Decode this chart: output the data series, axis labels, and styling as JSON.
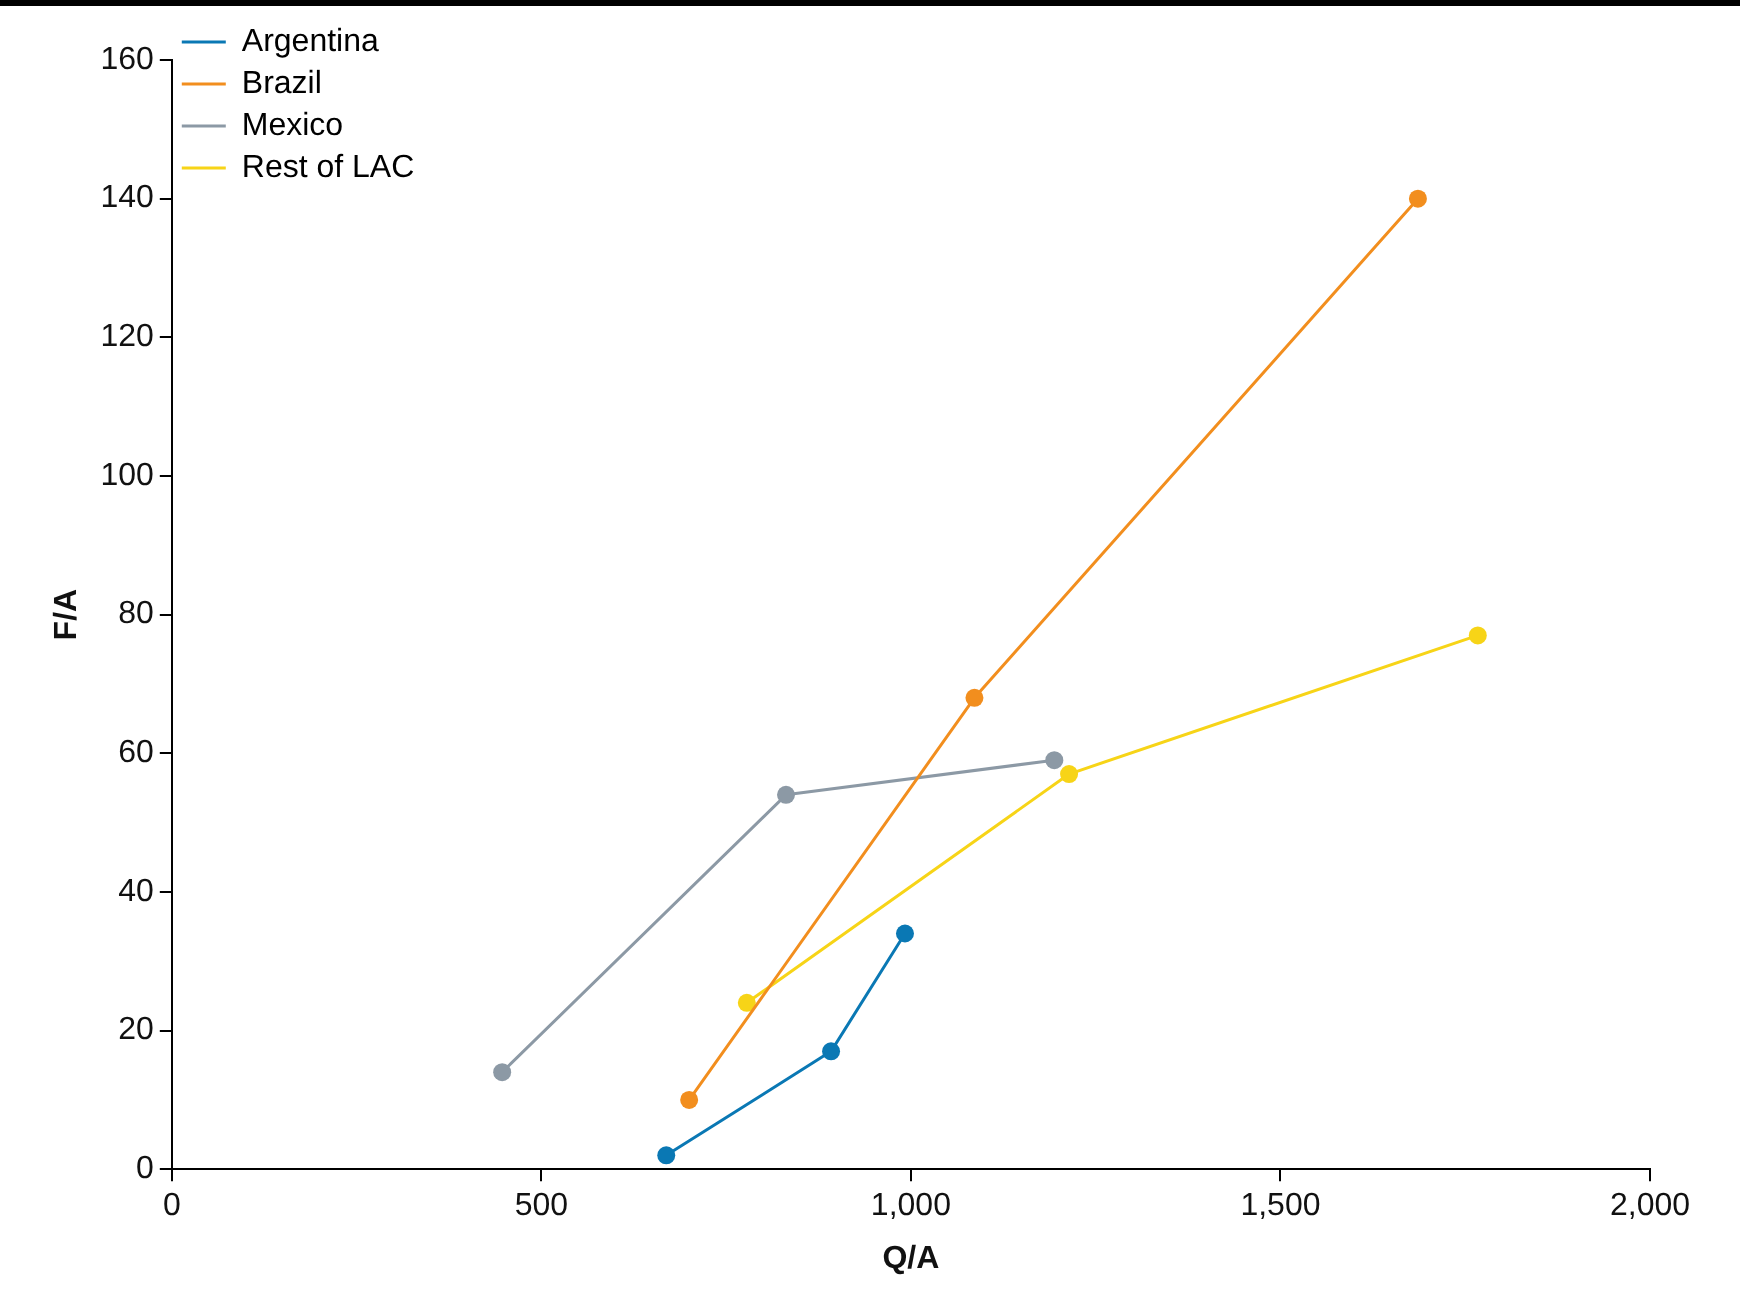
{
  "chart_data": {
    "type": "line",
    "xlabel": "Q/A",
    "ylabel": "F/A",
    "xlim": [
      0,
      2000
    ],
    "xticks": [
      0,
      500,
      {
        "value": 1000,
        "label": "1,000"
      },
      {
        "value": 1500,
        "label": "1,500"
      },
      {
        "value": 2000,
        "label": "2,000"
      }
    ],
    "ylim": [
      0,
      160
    ],
    "yticks": [
      0,
      20,
      40,
      60,
      80,
      100,
      120,
      140,
      160
    ],
    "grid": false,
    "legend": "top left",
    "marker": "circle",
    "line_style": "solid",
    "series": [
      {
        "name": "Argentina",
        "color": "#0a78b4",
        "x": [
          669,
          892,
          992
        ],
        "values": [
          2,
          17,
          34
        ]
      },
      {
        "name": "Brazil",
        "color": "#f28e1e",
        "x": [
          700,
          1086,
          1686
        ],
        "values": [
          10,
          68,
          140
        ]
      },
      {
        "name": "Mexico",
        "color": "#8c99a5",
        "x": [
          447,
          831,
          1194
        ],
        "values": [
          14,
          54,
          59
        ]
      },
      {
        "name": "Rest of LAC",
        "color": "#f7d417",
        "x": [
          778,
          1214,
          1767
        ],
        "values": [
          24,
          57,
          77
        ]
      }
    ]
  }
}
